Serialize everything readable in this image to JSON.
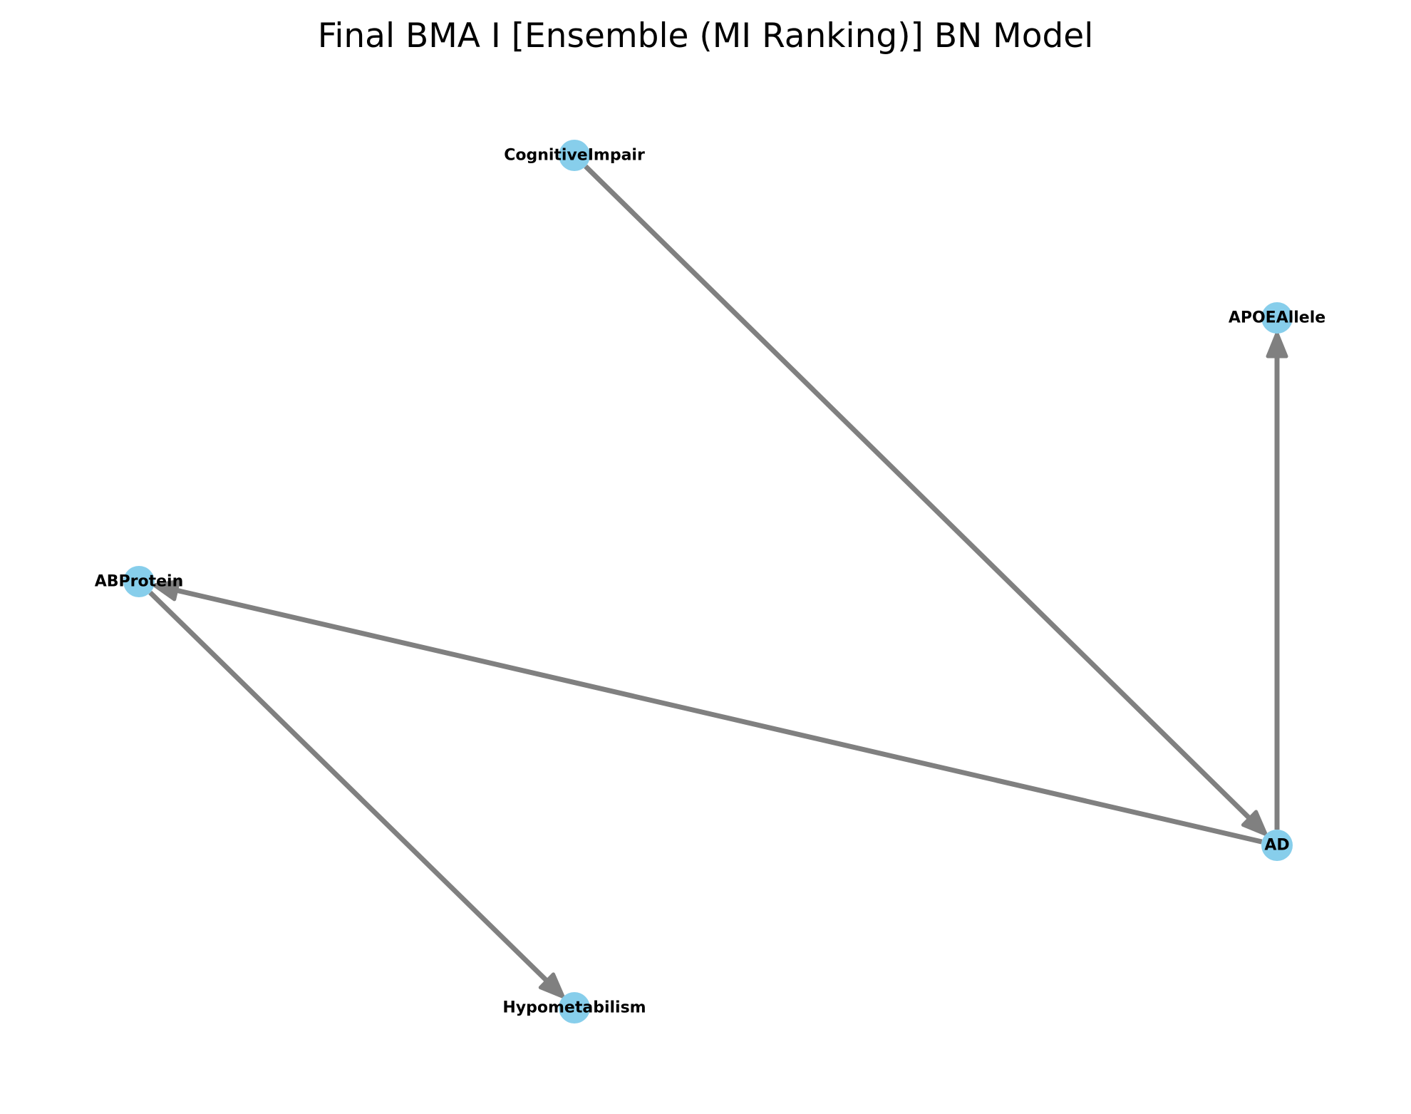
{
  "title": "Final BMA I [Ensemble (MI Ranking)] BN Model",
  "colors": {
    "node_fill": "#87CEEB",
    "edge_stroke": "#808080",
    "label": "#000000",
    "background": "#ffffff"
  },
  "nodes": [
    {
      "id": "CognitiveImpair",
      "label": "CognitiveImpair"
    },
    {
      "id": "APOEAllele",
      "label": "APOEAllele"
    },
    {
      "id": "ABProtein",
      "label": "ABProtein"
    },
    {
      "id": "AD",
      "label": "AD"
    },
    {
      "id": "Hypometabilism",
      "label": "Hypometabilism"
    }
  ],
  "edges": [
    {
      "from": "CognitiveImpair",
      "to": "AD"
    },
    {
      "from": "AD",
      "to": "APOEAllele"
    },
    {
      "from": "AD",
      "to": "ABProtein"
    },
    {
      "from": "ABProtein",
      "to": "Hypometabilism"
    }
  ]
}
